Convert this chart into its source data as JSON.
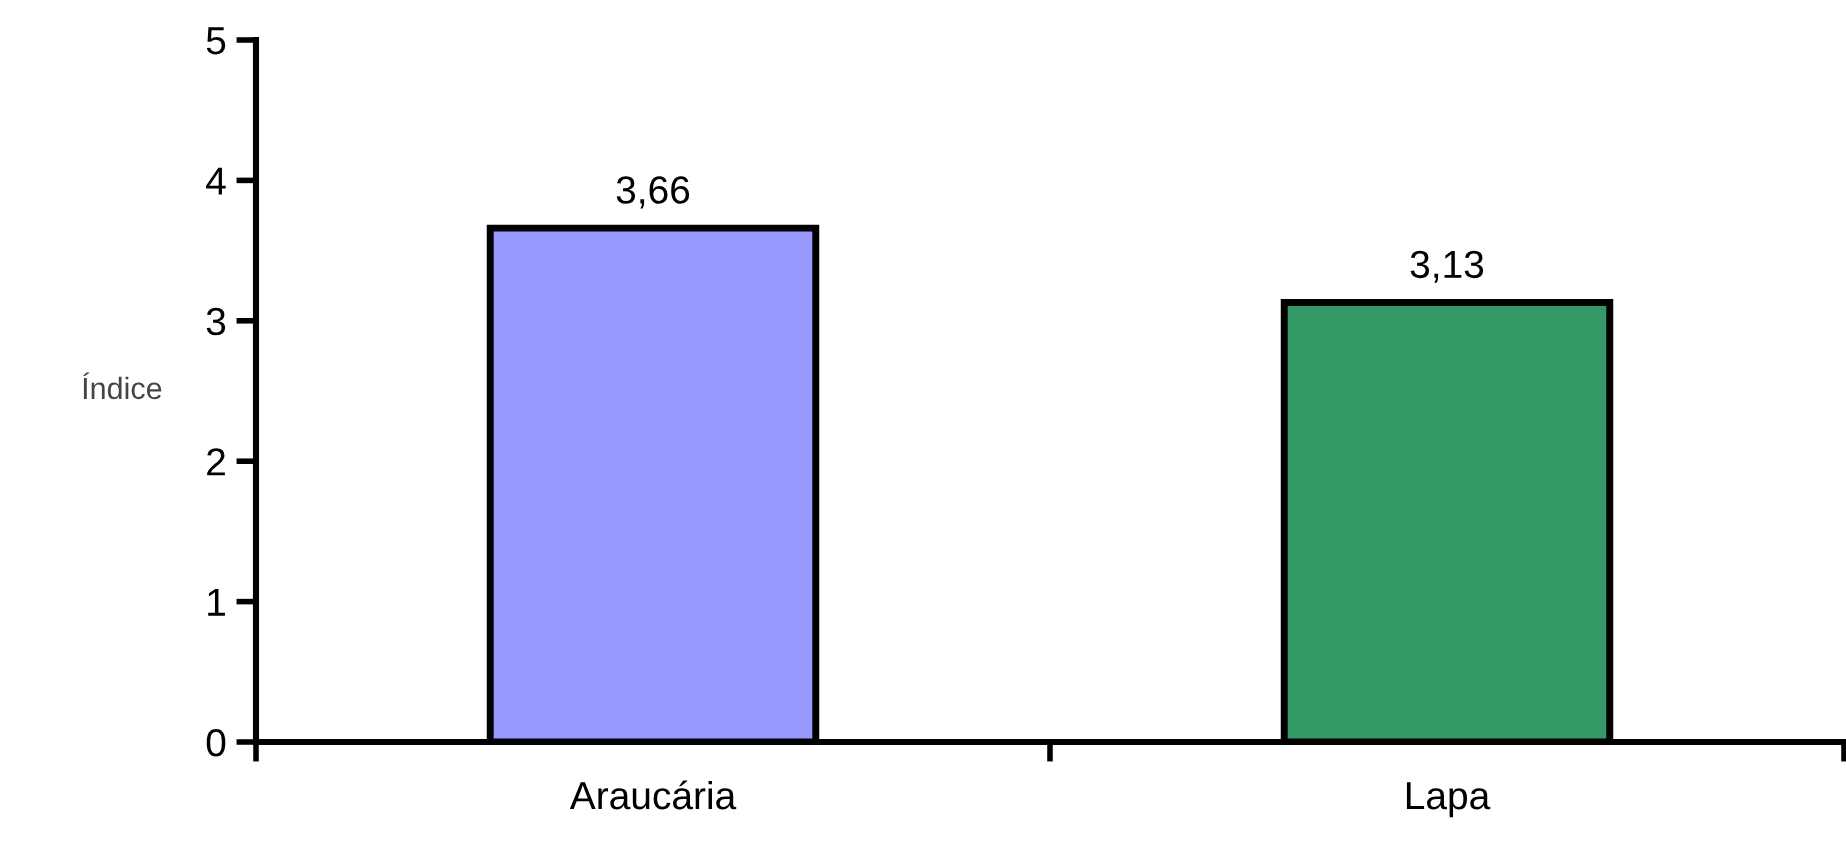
{
  "chart_data": {
    "type": "bar",
    "ylabel": "Índice",
    "categories": [
      "Araucária",
      "Lapa"
    ],
    "values": [
      3.66,
      3.13
    ],
    "colors": [
      "#9999ff",
      "#339966"
    ],
    "value_labels": [
      "3,66",
      "3,13"
    ],
    "ylim": [
      0,
      5
    ],
    "yticks": [
      0,
      1,
      2,
      3,
      4,
      5
    ],
    "grid": false,
    "legend": false
  }
}
